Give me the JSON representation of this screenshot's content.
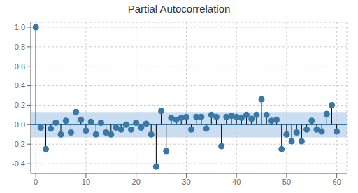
{
  "chart_data": {
    "type": "stem",
    "title": "Partial Autocorrelation",
    "x": [
      0,
      1,
      2,
      3,
      4,
      5,
      6,
      7,
      8,
      9,
      10,
      11,
      12,
      13,
      14,
      15,
      16,
      17,
      18,
      19,
      20,
      21,
      22,
      23,
      24,
      25,
      26,
      27,
      28,
      29,
      30,
      31,
      32,
      33,
      34,
      35,
      36,
      37,
      38,
      39,
      40,
      41,
      42,
      43,
      44,
      45,
      46,
      47,
      48,
      49,
      50,
      51,
      52,
      53,
      54,
      55,
      56,
      57,
      58,
      59,
      60
    ],
    "values": [
      1.0,
      -0.03,
      -0.25,
      -0.04,
      0.02,
      -0.1,
      0.04,
      -0.08,
      0.13,
      0.05,
      -0.06,
      0.03,
      -0.1,
      0.02,
      -0.08,
      -0.1,
      -0.03,
      -0.05,
      0.0,
      -0.05,
      0.02,
      -0.03,
      0.01,
      -0.1,
      -0.43,
      0.14,
      -0.27,
      0.07,
      0.05,
      0.07,
      0.08,
      -0.05,
      0.08,
      0.08,
      -0.04,
      0.1,
      0.08,
      -0.22,
      0.08,
      0.09,
      0.08,
      0.07,
      0.1,
      0.06,
      0.1,
      0.26,
      0.1,
      0.04,
      0.05,
      -0.25,
      -0.1,
      -0.17,
      -0.08,
      -0.17,
      -0.05,
      0.04,
      -0.05,
      -0.07,
      0.11,
      0.2,
      -0.07
    ],
    "color": "#3878a8",
    "stem_color": "black",
    "conf_band": {
      "lower": -0.13,
      "upper": 0.13,
      "color": "#a8c8e8"
    },
    "xlim": [
      -1,
      62
    ],
    "ylim": [
      -0.5,
      1.05
    ],
    "xticks": [
      0,
      10,
      20,
      30,
      40,
      50,
      60
    ],
    "yticks": [
      -0.4,
      -0.2,
      {
        "value": 0.0,
        "label": "0.0"
      },
      0.2,
      0.4,
      0.6,
      0.8,
      {
        "value": 1.0,
        "label": "1.0"
      }
    ],
    "grid": true
  }
}
